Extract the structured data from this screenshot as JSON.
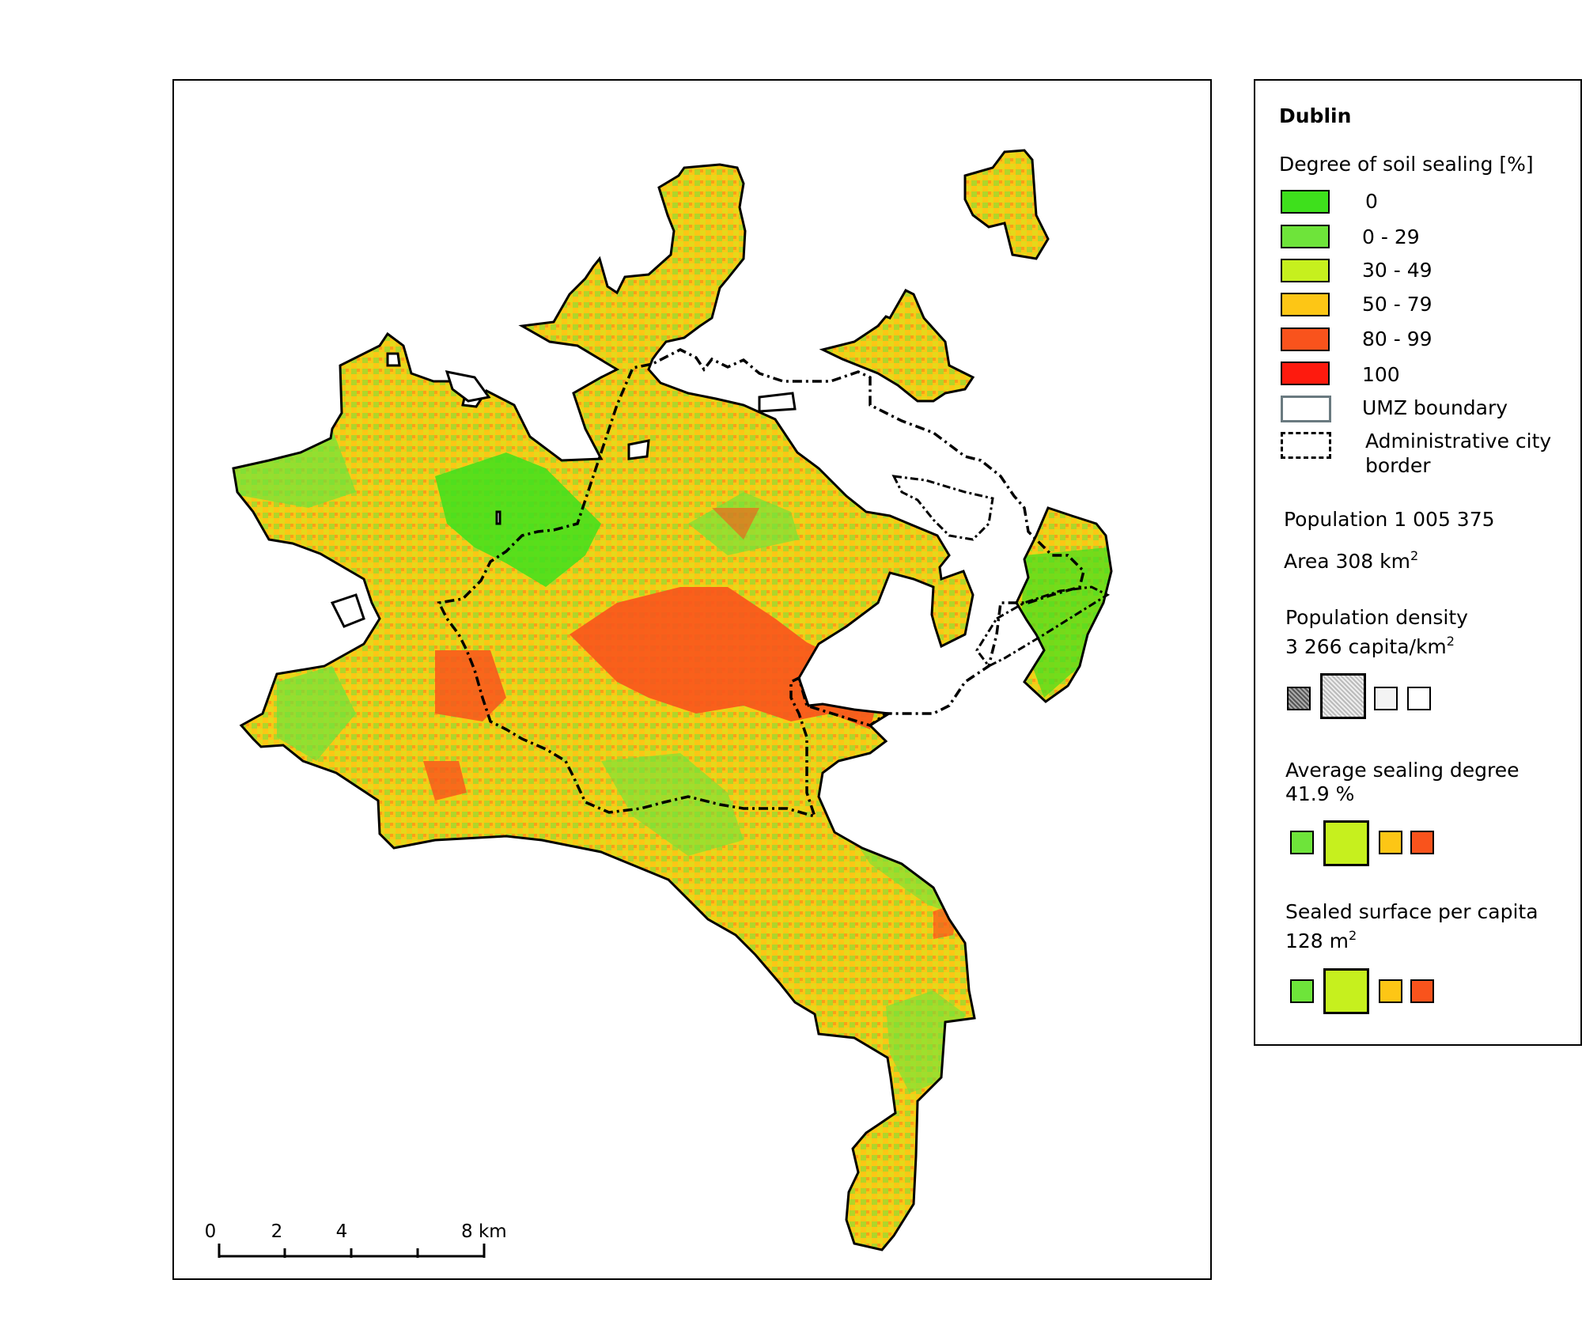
{
  "map": {
    "scale_bar": {
      "labels": [
        "0",
        "2",
        "4",
        "8 km"
      ]
    }
  },
  "legend": {
    "city": "Dublin",
    "sealing_title": "Degree of soil sealing [%]",
    "classes": [
      {
        "label": "0",
        "color": "#3ee01c"
      },
      {
        "label": "0 - 29",
        "color": "#6ee43a"
      },
      {
        "label": "30 - 49",
        "color": "#c6f01e"
      },
      {
        "label": "50 - 79",
        "color": "#fdc615"
      },
      {
        "label": "80 - 99",
        "color": "#f9531c"
      },
      {
        "label": "100",
        "color": "#fe1a0e"
      }
    ],
    "umz_label": "UMZ boundary",
    "admin_label_1": "Administrative city",
    "admin_label_2": "border",
    "population": "Population 1 005 375",
    "area_text": "Area 308 km",
    "area_sup": "2",
    "density_title": "Population density",
    "density_value": "3 266 capita/km",
    "density_sup": "2",
    "avg_title": "Average sealing degree",
    "avg_value": "41.9 %",
    "sealed_title": "Sealed surface per capita",
    "sealed_value": "128 m",
    "sealed_sup": "2"
  }
}
